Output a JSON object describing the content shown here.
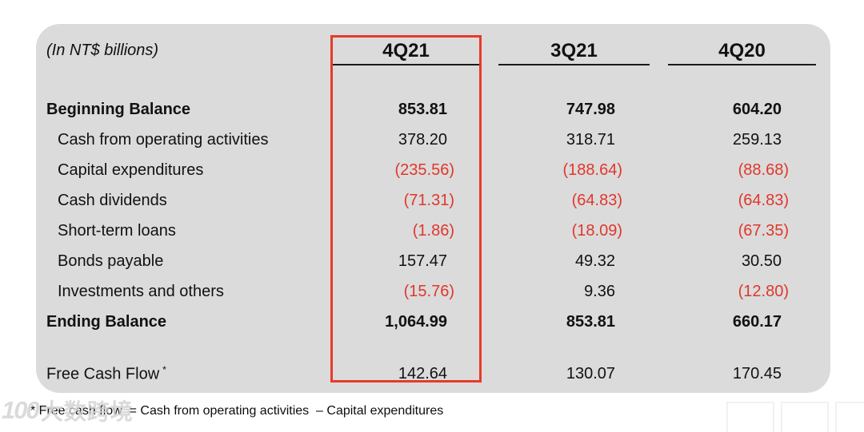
{
  "table": {
    "unit_label": "(In NT$ billions)",
    "columns": [
      "4Q21",
      "3Q21",
      "4Q20"
    ],
    "highlighted_column": "4Q21",
    "rows": [
      {
        "label": "Beginning Balance",
        "bold": true,
        "indent": false,
        "values": [
          "853.81",
          "747.98",
          "604.20"
        ]
      },
      {
        "label": "Cash from operating activities",
        "bold": false,
        "indent": true,
        "values": [
          "378.20",
          "318.71",
          "259.13"
        ]
      },
      {
        "label": "Capital expenditures",
        "bold": false,
        "indent": true,
        "values": [
          "(235.56)",
          "(188.64)",
          "(88.68)"
        ]
      },
      {
        "label": "Cash dividends",
        "bold": false,
        "indent": true,
        "values": [
          "(71.31)",
          "(64.83)",
          "(64.83)"
        ]
      },
      {
        "label": "Short-term loans",
        "bold": false,
        "indent": true,
        "values": [
          "(1.86)",
          "(18.09)",
          "(67.35)"
        ]
      },
      {
        "label": "Bonds payable",
        "bold": false,
        "indent": true,
        "values": [
          "157.47",
          "49.32",
          "30.50"
        ]
      },
      {
        "label": "Investments and others",
        "bold": false,
        "indent": true,
        "values": [
          "(15.76)",
          "9.36",
          "(12.80)"
        ]
      },
      {
        "label": "Ending Balance",
        "bold": true,
        "indent": false,
        "values": [
          "1,064.99",
          "853.81",
          "660.17"
        ]
      },
      {
        "label": "Free Cash Flow",
        "suffix": "*",
        "bold": false,
        "indent": false,
        "gap_before": true,
        "values": [
          "142.64",
          "130.07",
          "170.45"
        ]
      }
    ]
  },
  "footnote": {
    "text": "* Free cash flow  = Cash from operating activities  – Capital expenditures"
  },
  "watermark": {
    "logo": "100",
    "text": "大数跨境"
  },
  "colors": {
    "card_bg": "#dbdbdb",
    "text": "#111111",
    "negative_value": "#e0372b",
    "highlight_border": "#e8392b"
  }
}
